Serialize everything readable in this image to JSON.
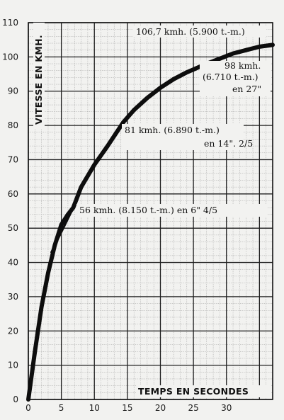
{
  "chart_data": {
    "type": "line",
    "xlabel": "TEMPS EN SECONDES",
    "ylabel": "VITESSE EN KMH.",
    "xlim": [
      0,
      37
    ],
    "ylim": [
      0,
      110
    ],
    "x_ticks": [
      0,
      5,
      10,
      15,
      20,
      25,
      30
    ],
    "y_ticks": [
      0,
      10,
      20,
      30,
      40,
      50,
      60,
      70,
      80,
      90,
      100,
      110
    ],
    "grid": "fine graph paper, 1-unit minor grid, bold lines every 5 s and 10 km/h",
    "series": [
      {
        "x": [
          0,
          1,
          2,
          3,
          4,
          5,
          6,
          6.8,
          8,
          10,
          12,
          14.4,
          16,
          18,
          20,
          22,
          24,
          27,
          29,
          31,
          33,
          35,
          37
        ],
        "y": [
          0,
          14,
          27,
          37,
          45,
          51,
          54,
          56,
          62,
          68.5,
          74,
          81,
          84.5,
          88,
          91,
          93.5,
          95.5,
          98,
          99.5,
          101,
          102,
          103,
          103.5
        ]
      }
    ],
    "annotations": [
      {
        "lines": [
          "106,7 kmh. (5.900 t.-m.)"
        ]
      },
      {
        "lines": [
          "98 kmh.",
          "(6.710 t.-m.)",
          "en 27\""
        ]
      },
      {
        "lines": [
          "81 kmh. (6.890 t.-m.)",
          "en 14\". 2/5"
        ]
      },
      {
        "lines": [
          "56 kmh. (8.150 t.-m.) en 6\" 4/5"
        ]
      }
    ]
  }
}
